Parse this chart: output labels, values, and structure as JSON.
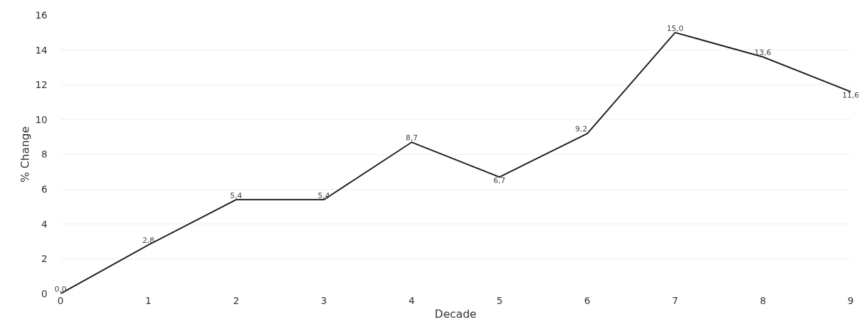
{
  "chart_data": {
    "type": "line",
    "xlabel": "Decade",
    "ylabel": "% Change",
    "x": [
      0,
      1,
      2,
      3,
      4,
      5,
      6,
      7,
      8,
      9
    ],
    "series": [
      {
        "color": "#1f1f1f",
        "values": [
          0.0,
          2.8,
          5.4,
          5.4,
          8.7,
          6.7,
          9.2,
          15.0,
          13.6,
          11.6
        ],
        "value_labels": [
          "0,0",
          "2,8",
          "5,4",
          "5,4",
          "8,7",
          "6,7",
          "9,2",
          "15,0",
          "13,6",
          "11,6"
        ]
      }
    ],
    "xlim": [
      0,
      9
    ],
    "xticks": [
      0,
      1,
      2,
      3,
      4,
      5,
      6,
      7,
      8,
      9
    ],
    "ylim": [
      0,
      16
    ],
    "yticks": [
      0,
      2,
      4,
      6,
      8,
      10,
      12,
      14,
      16
    ],
    "grid": "y",
    "marker": "none",
    "line_style": "solid"
  }
}
